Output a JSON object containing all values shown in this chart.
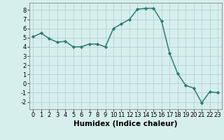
{
  "x": [
    0,
    1,
    2,
    3,
    4,
    5,
    6,
    7,
    8,
    9,
    10,
    11,
    12,
    13,
    14,
    15,
    16,
    17,
    18,
    19,
    20,
    21,
    22,
    23
  ],
  "y": [
    5.1,
    5.5,
    4.9,
    4.5,
    4.6,
    4.0,
    4.0,
    4.3,
    4.3,
    4.0,
    6.0,
    6.5,
    7.0,
    8.1,
    8.2,
    8.2,
    6.8,
    3.3,
    1.1,
    -0.2,
    -0.5,
    -2.1,
    -0.9,
    -1.0
  ],
  "line_color": "#2d7d6e",
  "marker": "D",
  "marker_size": 2.2,
  "bg_color": "#d6eeec",
  "grid_color": "#b8d8d5",
  "xlabel": "Humidex (Indice chaleur)",
  "xlim": [
    -0.5,
    23.5
  ],
  "ylim": [
    -2.8,
    8.8
  ],
  "yticks": [
    -2,
    -1,
    0,
    1,
    2,
    3,
    4,
    5,
    6,
    7,
    8
  ],
  "xticks": [
    0,
    1,
    2,
    3,
    4,
    5,
    6,
    7,
    8,
    9,
    10,
    11,
    12,
    13,
    14,
    15,
    16,
    17,
    18,
    19,
    20,
    21,
    22,
    23
  ],
  "xlabel_fontsize": 7.5,
  "tick_fontsize": 6.0,
  "line_width": 1.1
}
